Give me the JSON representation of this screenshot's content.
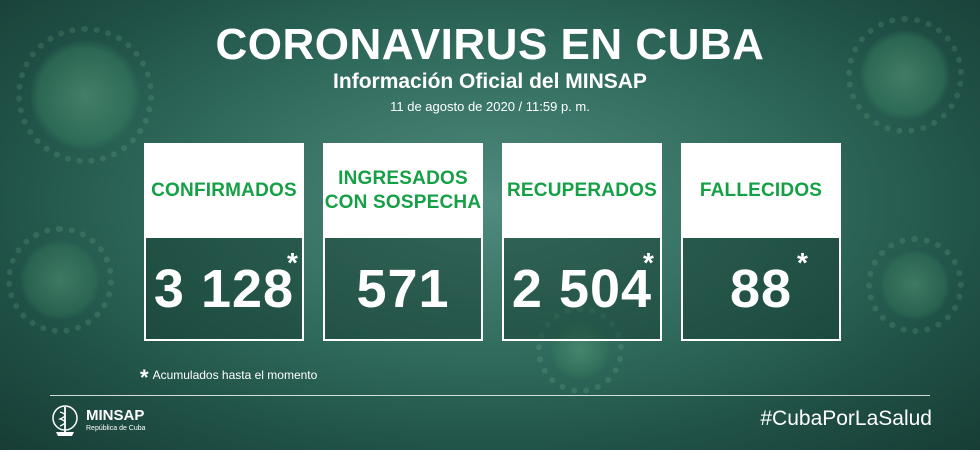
{
  "header": {
    "title": "CORONAVIRUS EN CUBA",
    "subtitle": "Información Oficial del MINSAP",
    "date": "11 de agosto de 2020 / 11:59 p. m."
  },
  "cards": [
    {
      "label": "CONFIRMADOS",
      "value": "3 128",
      "asterisk": "*"
    },
    {
      "label": "INGRESADOS\nCON SOSPECHA",
      "value": "571",
      "asterisk": ""
    },
    {
      "label": "RECUPERADOS",
      "value": "2 504",
      "asterisk": "*"
    },
    {
      "label": "FALLECIDOS",
      "value": "88",
      "asterisk": "*"
    }
  ],
  "footnote": {
    "symbol": "*",
    "text": "Acumulados hasta el momento"
  },
  "footer": {
    "logo_name": "MINSAP",
    "logo_sub": "República de Cuba",
    "hashtag": "#CubaPorLaSalud"
  },
  "colors": {
    "label_green": "#16a046",
    "card_white": "#ffffff"
  }
}
